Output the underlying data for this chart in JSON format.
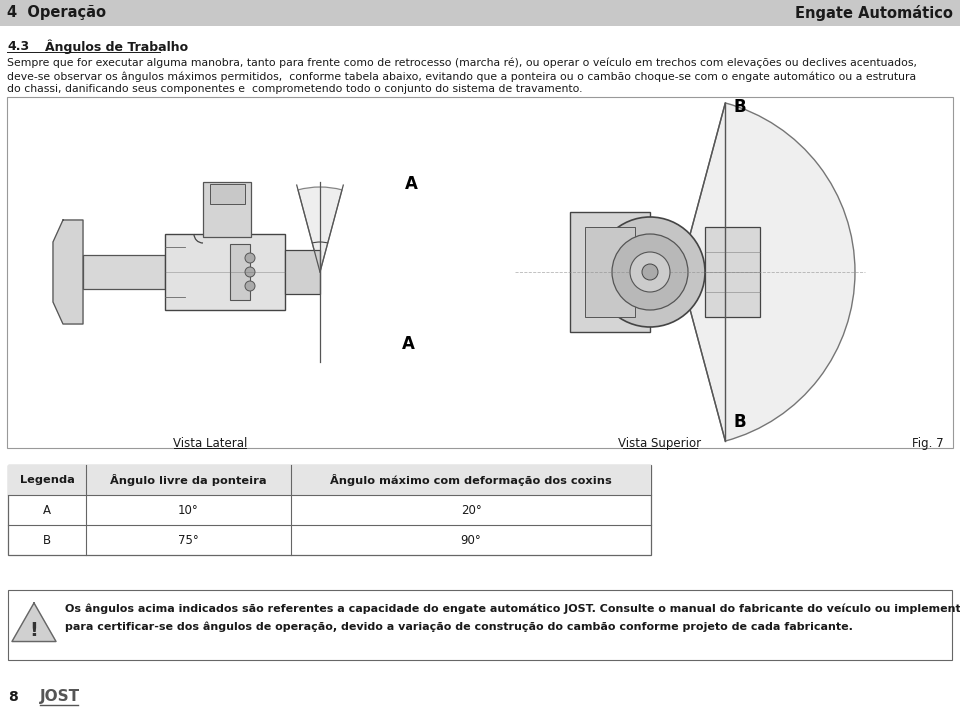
{
  "header_bg": "#c8c8c8",
  "header_left": "4  Operação",
  "header_right": "Engate Automático",
  "header_color": "#1a1a1a",
  "body_line1": "Sempre que for executar alguma manobra, tanto para frente como de retrocesso (marcha ré), ou operar o veículo em trechos com elevações ou declives acentuados,",
  "body_line2": "deve-se observar os ângulos máximos permitidos,  conforme tabela abaixo, evitando que a ponteira ou o cambão choque-se com o engate automático ou a estrutura",
  "body_line3": "do chassi, danificando seus componentes e  comprometendo todo o conjunto do sistema de travamento.",
  "section_num": "4.3",
  "section_title": "Ângulos de Trabalho",
  "fig_caption_left": "Vista Lateral",
  "fig_caption_right": "Vista Superior",
  "fig_label": "Fig. 7",
  "table_headers": [
    "Legenda",
    "Ângulo livre da ponteira",
    "Ângulo máximo com deformação dos coxins"
  ],
  "table_row1": [
    "A",
    "10°",
    "20°"
  ],
  "table_row2": [
    "B",
    "75°",
    "90°"
  ],
  "warning_line1_bold": "Os ângulos acima indicados são referentes a capacidade do engate automático JOST.",
  "warning_line1_normal": " Consulte o manual do fabricante do veículo ou implemento",
  "warning_line2": "para certificar-se dos ângulos de operação, devido a variação de construção do cambão conforme projeto de cada fabricante.",
  "page_number": "8",
  "page_bg": "#ffffff",
  "text_color": "#1a1a1a",
  "table_border_color": "#666666",
  "fig_border_color": "#999999",
  "warn_triangle_fill": "#e0e0e0",
  "warn_triangle_border": "#666666",
  "jost_color": "#555555"
}
